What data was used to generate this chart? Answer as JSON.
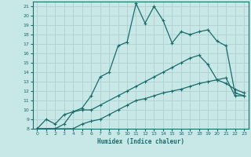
{
  "xlabel": "Humidex (Indice chaleur)",
  "bg_color": "#c8e8e8",
  "grid_color": "#b0d0d0",
  "line_color": "#1a6b6b",
  "xlim": [
    -0.5,
    23.5
  ],
  "ylim": [
    8,
    21.5
  ],
  "xticks": [
    0,
    1,
    2,
    3,
    4,
    5,
    6,
    7,
    8,
    9,
    10,
    11,
    12,
    13,
    14,
    15,
    16,
    17,
    18,
    19,
    20,
    21,
    22,
    23
  ],
  "yticks": [
    8,
    9,
    10,
    11,
    12,
    13,
    14,
    15,
    16,
    17,
    18,
    19,
    20,
    21
  ],
  "line1_x": [
    0,
    1,
    2,
    3,
    4,
    5,
    6,
    7,
    8,
    9,
    10,
    11,
    12,
    13,
    14,
    15,
    16,
    17,
    18,
    19,
    20,
    21,
    22,
    23
  ],
  "line1_y": [
    8.0,
    9.0,
    8.5,
    9.5,
    9.8,
    10.2,
    11.5,
    13.5,
    14.0,
    16.8,
    17.2,
    21.3,
    19.2,
    21.0,
    19.5,
    17.1,
    18.3,
    18.0,
    18.3,
    18.5,
    17.3,
    16.8,
    11.8,
    11.5
  ],
  "line2_x": [
    0,
    2,
    3,
    4,
    5,
    6,
    7,
    9,
    10,
    11,
    12,
    13,
    14,
    15,
    16,
    17,
    18,
    19,
    20,
    21,
    22,
    23
  ],
  "line2_y": [
    8.0,
    8.0,
    8.5,
    9.8,
    10.0,
    10.0,
    10.5,
    11.5,
    12.0,
    12.5,
    13.0,
    13.5,
    14.0,
    14.5,
    15.0,
    15.5,
    15.8,
    14.8,
    13.2,
    12.8,
    12.2,
    11.8
  ],
  "line3_x": [
    0,
    2,
    4,
    5,
    6,
    7,
    8,
    9,
    10,
    11,
    12,
    13,
    14,
    15,
    16,
    17,
    18,
    19,
    20,
    21,
    22,
    23
  ],
  "line3_y": [
    8.0,
    8.0,
    8.0,
    8.5,
    8.8,
    9.0,
    9.5,
    10.0,
    10.5,
    11.0,
    11.2,
    11.5,
    11.8,
    12.0,
    12.2,
    12.5,
    12.8,
    13.0,
    13.2,
    13.4,
    11.5,
    11.5
  ]
}
